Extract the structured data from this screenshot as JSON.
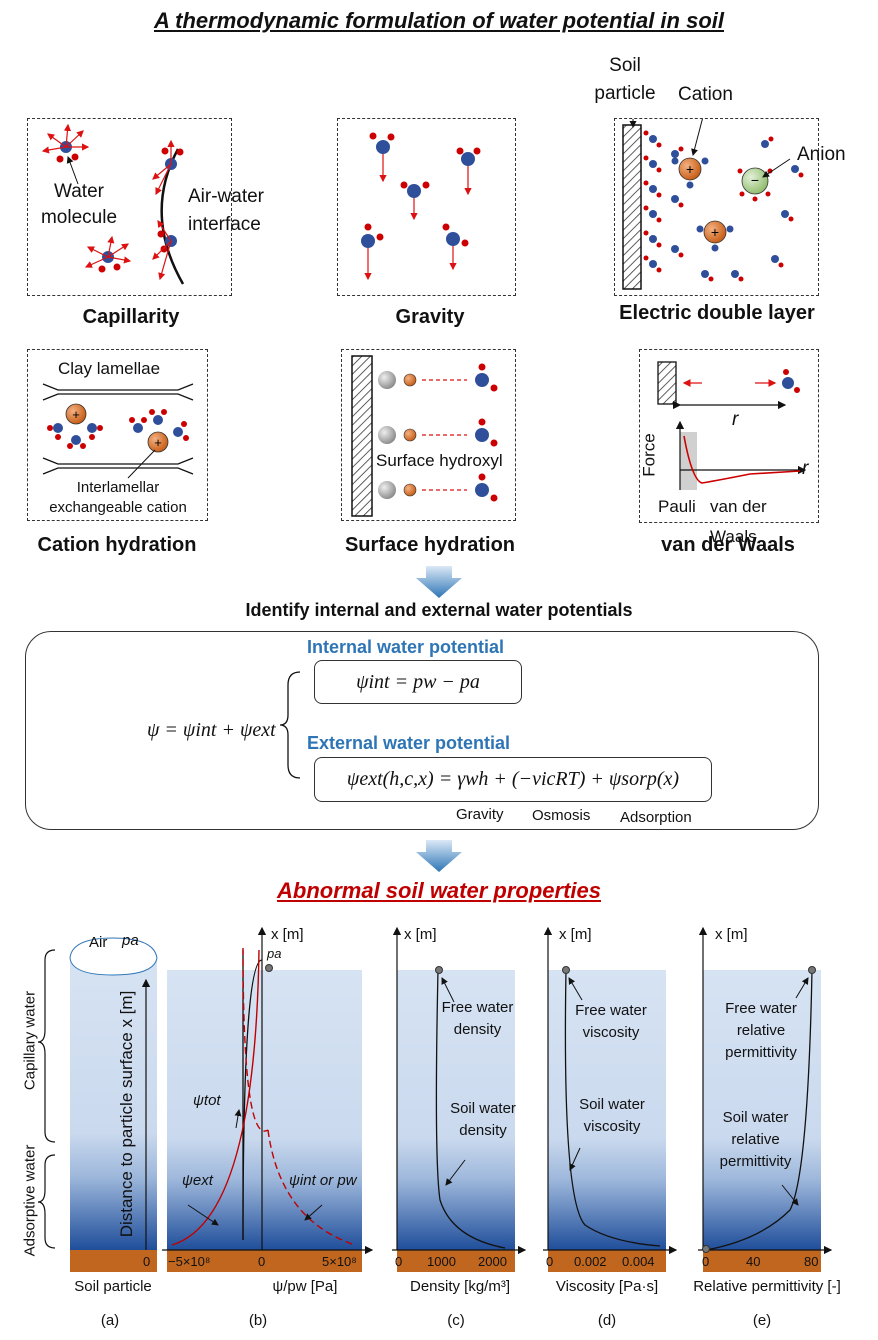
{
  "title": "A thermodynamic formulation of water potential in soil",
  "mechanisms": {
    "capillarity": {
      "caption": "Capillarity",
      "water_molecule": "Water molecule",
      "interface": "Air-water interface"
    },
    "gravity": {
      "caption": "Gravity"
    },
    "edl": {
      "caption": "Electric double layer",
      "soil_particle": "Soil particle",
      "cation": "Cation",
      "anion": "Anion"
    },
    "cation_hydration": {
      "caption": "Cation hydration",
      "clay": "Clay lamellae",
      "interlamellar": "Interlamellar exchangeable cation"
    },
    "surface_hydration": {
      "caption": "Surface hydration",
      "hydroxyl": "Surface hydroxyl"
    },
    "vdw": {
      "caption": "van der Waals",
      "r": "r",
      "force": "Force",
      "pauli": "Pauli",
      "vdw_label": "van der Waals"
    }
  },
  "identify": {
    "heading": "Identify internal and external water potentials",
    "internal_title": "Internal water potential",
    "external_title": "External water potential",
    "eq_total": "ψ = ψint + ψext",
    "eq_internal": "ψint = pw − pa",
    "eq_external": "ψext(h,c,x) = γwh + (−νicRT) + ψsorp(x)",
    "gravity": "Gravity",
    "osmosis": "Osmosis",
    "adsorption": "Adsorption"
  },
  "abnormal": {
    "title": "Abnormal soil water properties",
    "side_capillary": "Capillary water",
    "side_adsorptive": "Adsorptive water",
    "air": "Air",
    "pa": "pa",
    "distance_axis": "Distance to particle surface x [m]",
    "x_label": "x [m]",
    "panels": [
      {
        "id": "(a)",
        "xlabel": "Soil particle",
        "ticks": [
          "0"
        ]
      },
      {
        "id": "(b)",
        "xlabel": "ψ/pw [Pa]",
        "ticks": [
          "−5×10⁸",
          "0",
          "5×10⁸"
        ],
        "psi_tot": "ψtot",
        "psi_ext": "ψext",
        "psi_int": "ψint or pw",
        "pa": "pa"
      },
      {
        "id": "(c)",
        "xlabel": "Density [kg/m³]",
        "ticks": [
          "0",
          "1000",
          "2000"
        ],
        "free": "Free water density",
        "soil": "Soil water density"
      },
      {
        "id": "(d)",
        "xlabel": "Viscosity [Pa·s]",
        "ticks": [
          "0",
          "0.002",
          "0.004"
        ],
        "free": "Free water viscosity",
        "soil": "Soil water viscosity"
      },
      {
        "id": "(e)",
        "xlabel": "Relative permittivity [-]",
        "ticks": [
          "0",
          "40",
          "80"
        ],
        "free": "Free water relative permittivity",
        "soil": "Soil water relative permittivity"
      }
    ]
  },
  "colors": {
    "blue_title": "#2e75b6",
    "red_title": "#c00000",
    "soil": "#c0661f",
    "arrow_blue": "#2e75b6"
  }
}
